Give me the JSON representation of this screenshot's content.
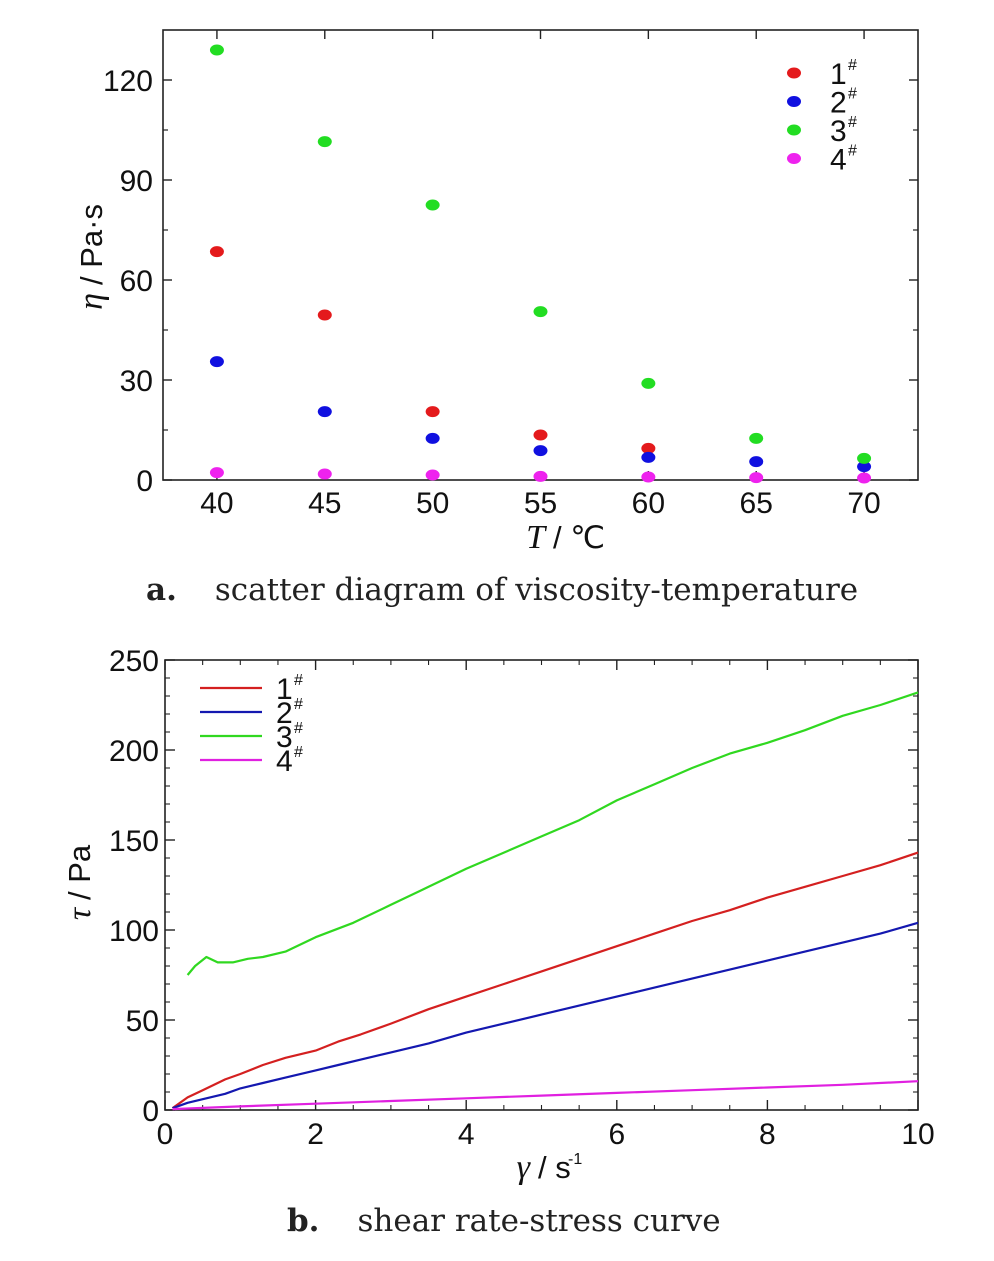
{
  "chart_data": [
    {
      "type": "scatter",
      "caption_letter": "a.",
      "caption_text": "scatter diagram of viscosity-temperature",
      "xlabel_symbol": "T",
      "xlabel_unit": "/ ℃",
      "ylabel_symbol": "η",
      "ylabel_unit": "/ Pa·s",
      "xlim": [
        37.5,
        72.5
      ],
      "ylim": [
        0,
        135
      ],
      "xticks": [
        40,
        45,
        50,
        55,
        60,
        65,
        70
      ],
      "yticks": [
        0,
        30,
        60,
        90,
        120
      ],
      "grid": false,
      "legend_position": "top-right",
      "x": [
        40,
        45,
        50,
        55,
        60,
        65,
        70
      ],
      "series": [
        {
          "name": "1",
          "sup": "#",
          "color": "#e41a1c",
          "values": [
            68.5,
            49.5,
            20.5,
            13.5,
            9.5,
            null,
            null
          ]
        },
        {
          "name": "2",
          "sup": "#",
          "color": "#1010e0",
          "values": [
            35.5,
            20.5,
            12.5,
            8.8,
            6.8,
            5.5,
            4.0
          ]
        },
        {
          "name": "3",
          "sup": "#",
          "color": "#22dd22",
          "values": [
            129.0,
            101.5,
            82.5,
            50.5,
            29.0,
            12.5,
            6.5
          ]
        },
        {
          "name": "4",
          "sup": "#",
          "color": "#ee22ee",
          "values": [
            2.2,
            1.8,
            1.5,
            1.1,
            0.9,
            0.7,
            0.6
          ]
        }
      ]
    },
    {
      "type": "line",
      "caption_letter": "b.",
      "caption_text": "shear rate-stress curve",
      "xlabel_symbol": "γ",
      "xlabel_unit": "/ s",
      "xlabel_exp": "-1",
      "ylabel_symbol": "τ",
      "ylabel_unit": "/ Pa",
      "xlim": [
        0,
        10
      ],
      "ylim": [
        0,
        250
      ],
      "xticks": [
        0,
        2,
        4,
        6,
        8,
        10
      ],
      "yticks": [
        0,
        50,
        100,
        150,
        200,
        250
      ],
      "grid": false,
      "legend_position": "top-left",
      "series": [
        {
          "name": "1",
          "sup": "#",
          "color": "#d42020",
          "x": [
            0.1,
            0.3,
            0.5,
            0.8,
            1.0,
            1.3,
            1.6,
            2.0,
            2.3,
            2.6,
            3.0,
            3.5,
            4.0,
            4.5,
            5.0,
            5.5,
            6.0,
            6.5,
            7.0,
            7.5,
            8.0,
            8.5,
            9.0,
            9.5,
            10.0
          ],
          "y": [
            1,
            7,
            11,
            17,
            20,
            25,
            29,
            33,
            38,
            42,
            48,
            56,
            63,
            70,
            77,
            84,
            91,
            98,
            105,
            111,
            118,
            124,
            130,
            136,
            143
          ]
        },
        {
          "name": "2",
          "sup": "#",
          "color": "#1418b0",
          "x": [
            0.1,
            0.3,
            0.5,
            0.8,
            1.0,
            1.3,
            1.6,
            2.0,
            2.3,
            2.6,
            3.0,
            3.5,
            4.0,
            4.5,
            5.0,
            5.5,
            6.0,
            6.5,
            7.0,
            7.5,
            8.0,
            8.5,
            9.0,
            9.5,
            10.0
          ],
          "y": [
            1,
            4,
            6,
            9,
            12,
            15,
            18,
            22,
            25,
            28,
            32,
            37,
            43,
            48,
            53,
            58,
            63,
            68,
            73,
            78,
            83,
            88,
            93,
            98,
            104
          ]
        },
        {
          "name": "3",
          "sup": "#",
          "color": "#30d820",
          "x": [
            0.3,
            0.4,
            0.55,
            0.7,
            0.9,
            1.1,
            1.3,
            1.6,
            2.0,
            2.5,
            3.0,
            3.5,
            4.0,
            4.5,
            5.0,
            5.5,
            6.0,
            6.5,
            7.0,
            7.5,
            8.0,
            8.5,
            9.0,
            9.5,
            10.0
          ],
          "y": [
            75,
            80,
            85,
            82,
            82,
            84,
            85,
            88,
            96,
            104,
            114,
            124,
            134,
            143,
            152,
            161,
            172,
            181,
            190,
            198,
            204,
            211,
            219,
            225,
            232
          ]
        },
        {
          "name": "4",
          "sup": "#",
          "color": "#e020e0",
          "x": [
            0.1,
            1.0,
            2.0,
            3.0,
            4.0,
            5.0,
            6.0,
            7.0,
            8.0,
            9.0,
            10.0
          ],
          "y": [
            0.5,
            2,
            3.5,
            5,
            6.5,
            8,
            9.5,
            11,
            12.5,
            14,
            16
          ]
        }
      ]
    }
  ]
}
